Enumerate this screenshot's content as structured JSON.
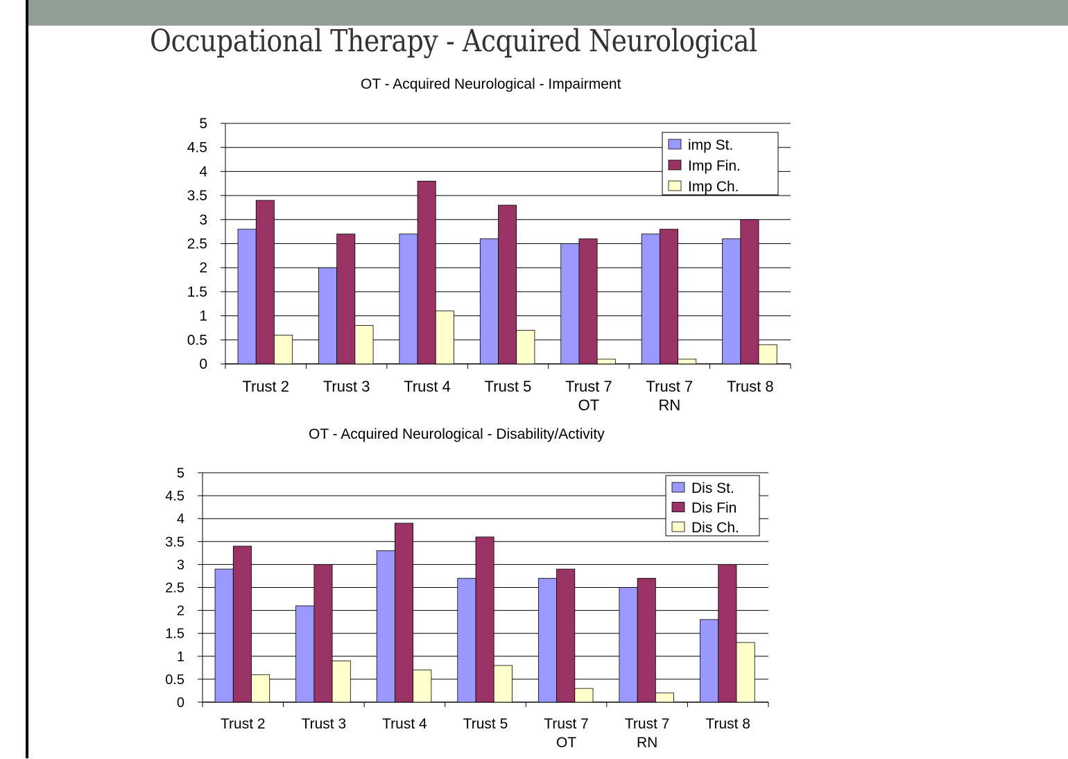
{
  "slide": {
    "title": "Occupational Therapy - Acquired Neurological"
  },
  "colors": {
    "band": "#919f96",
    "start": "#9999ff",
    "final": "#993366",
    "change": "#ffffcc"
  },
  "chart_data": [
    {
      "type": "bar",
      "title": "OT - Acquired Neurological - Impairment",
      "categories": [
        [
          "Trust 2"
        ],
        [
          "Trust 3"
        ],
        [
          "Trust 4"
        ],
        [
          "Trust 5"
        ],
        [
          "Trust 7",
          "OT"
        ],
        [
          "Trust 7",
          "RN"
        ],
        [
          "Trust 8"
        ]
      ],
      "series": [
        {
          "name": "imp St.",
          "values": [
            2.8,
            2.0,
            2.7,
            2.6,
            2.5,
            2.7,
            2.6
          ]
        },
        {
          "name": "Imp Fin.",
          "values": [
            3.4,
            2.7,
            3.8,
            3.3,
            2.6,
            2.8,
            3.0
          ]
        },
        {
          "name": "Imp Ch.",
          "values": [
            0.6,
            0.8,
            1.1,
            0.7,
            0.1,
            0.1,
            0.4
          ]
        }
      ],
      "ylim": [
        0,
        5
      ],
      "yticks": [
        "0",
        "0.5",
        "1",
        "1.5",
        "2",
        "2.5",
        "3",
        "3.5",
        "4",
        "4.5",
        "5"
      ],
      "grid": true,
      "legend": "top-right"
    },
    {
      "type": "bar",
      "title": "OT - Acquired Neurological - Disability/Activity",
      "categories": [
        [
          "Trust 2"
        ],
        [
          "Trust 3"
        ],
        [
          "Trust 4"
        ],
        [
          "Trust 5"
        ],
        [
          "Trust 7",
          "OT"
        ],
        [
          "Trust 7",
          "RN"
        ],
        [
          "Trust 8"
        ]
      ],
      "series": [
        {
          "name": "Dis St.",
          "values": [
            2.9,
            2.1,
            3.3,
            2.7,
            2.7,
            2.5,
            1.8
          ]
        },
        {
          "name": "Dis Fin",
          "values": [
            3.4,
            3.0,
            3.9,
            3.6,
            2.9,
            2.7,
            3.0
          ]
        },
        {
          "name": "Dis Ch.",
          "values": [
            0.6,
            0.9,
            0.7,
            0.8,
            0.3,
            0.2,
            1.3
          ]
        }
      ],
      "ylim": [
        0,
        5
      ],
      "yticks": [
        "0",
        "0.5",
        "1",
        "1.5",
        "2",
        "2.5",
        "3",
        "3.5",
        "4",
        "4.5",
        "5"
      ],
      "grid": true,
      "legend": "top-right"
    }
  ]
}
